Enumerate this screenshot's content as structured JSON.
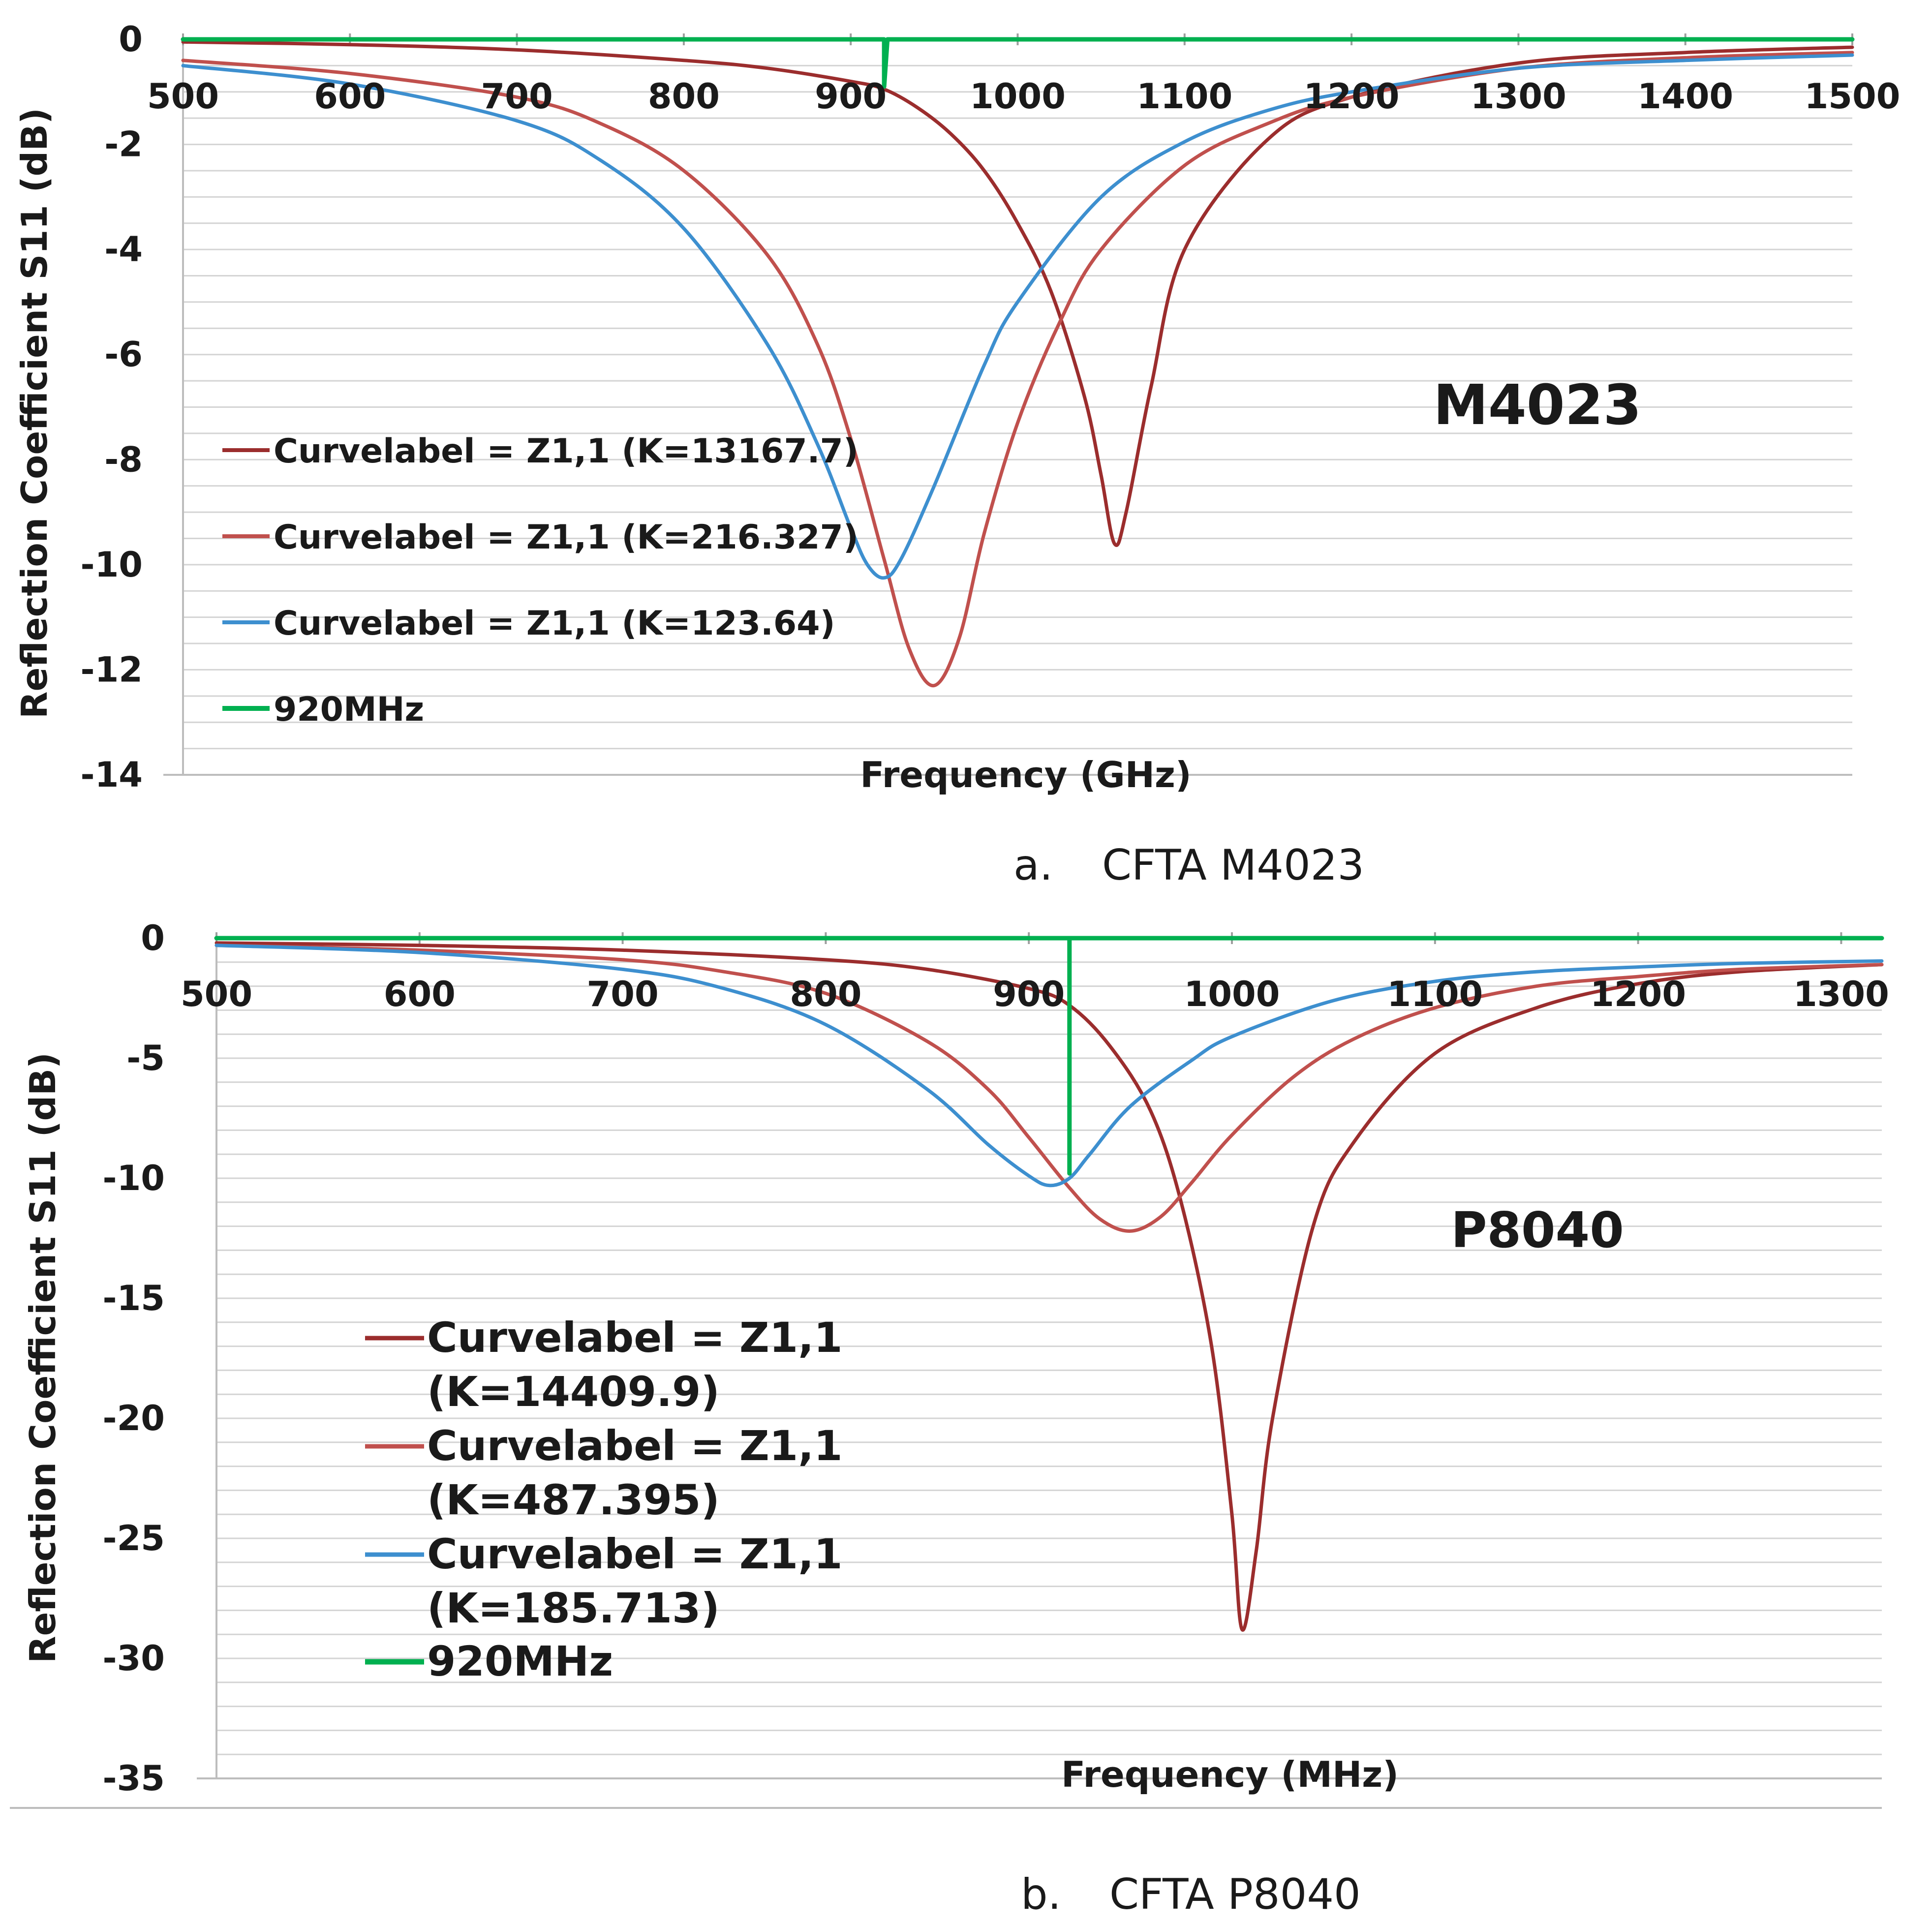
{
  "chart_data": [
    {
      "type": "line",
      "title": "M4023",
      "caption_label": "a.",
      "caption_text": "CFTA M4023",
      "xlabel": "Frequency (GHz)",
      "ylabel": "Reflection Coefficient S11 (dB)",
      "xlim": [
        500,
        1500
      ],
      "ylim": [
        -14,
        0
      ],
      "xticks": [
        "500",
        "600",
        "700",
        "800",
        "900",
        "1000",
        "1100",
        "1200",
        "1300",
        "1400",
        "1500"
      ],
      "yticks": [
        "0",
        "-2",
        "-4",
        "-6",
        "-8",
        "-10",
        "-12",
        "-14"
      ],
      "grid": true,
      "legend": "left-center",
      "series": [
        {
          "name": "Curvelabel = Z1,1 (K=13167.7)",
          "color": "#9b2d2d",
          "x": [
            500,
            600,
            700,
            800,
            850,
            900,
            920,
            940,
            960,
            980,
            1000,
            1020,
            1040,
            1050,
            1058,
            1065,
            1080,
            1100,
            1150,
            1200,
            1300,
            1400,
            1500
          ],
          "y": [
            -0.05,
            -0.1,
            -0.2,
            -0.4,
            -0.55,
            -0.8,
            -0.95,
            -1.3,
            -1.8,
            -2.5,
            -3.5,
            -4.8,
            -6.8,
            -8.3,
            -9.6,
            -9.0,
            -6.6,
            -4.0,
            -1.9,
            -1.1,
            -0.45,
            -0.25,
            -0.15
          ]
        },
        {
          "name": "Curvelabel = Z1,1 (K=216.327)",
          "color": "#c0504d",
          "x": [
            500,
            600,
            700,
            750,
            800,
            850,
            880,
            900,
            920,
            935,
            950,
            965,
            980,
            1000,
            1025,
            1050,
            1100,
            1150,
            1200,
            1300,
            1400,
            1500
          ],
          "y": [
            -0.4,
            -0.65,
            -1.1,
            -1.6,
            -2.5,
            -4.1,
            -5.8,
            -7.6,
            -9.9,
            -11.6,
            -12.3,
            -11.4,
            -9.4,
            -7.3,
            -5.4,
            -4.0,
            -2.4,
            -1.6,
            -1.1,
            -0.55,
            -0.35,
            -0.25
          ]
        },
        {
          "name": "Curvelabel = Z1,1 (K=123.64)",
          "color": "#3d8fcf",
          "x": [
            500,
            600,
            700,
            750,
            800,
            850,
            880,
            900,
            910,
            920,
            930,
            950,
            980,
            1000,
            1050,
            1100,
            1150,
            1200,
            1300,
            1400,
            1500
          ],
          "y": [
            -0.5,
            -0.85,
            -1.55,
            -2.3,
            -3.6,
            -5.8,
            -7.7,
            -9.3,
            -10.0,
            -10.25,
            -9.9,
            -8.5,
            -6.2,
            -5.0,
            -3.0,
            -1.95,
            -1.35,
            -1.0,
            -0.55,
            -0.4,
            -0.3
          ]
        },
        {
          "name": "920MHz",
          "color": "#00b050",
          "x": [
            500,
            918,
            920,
            920,
            922,
            1500
          ],
          "y": [
            0,
            0,
            0,
            -0.9,
            0,
            0
          ]
        }
      ]
    },
    {
      "type": "line",
      "title": "P8040",
      "caption_label": "b.",
      "caption_text": "CFTA P8040",
      "xlabel": "Frequency (MHz)",
      "ylabel": "Reflection Coefficient S11 (dB)",
      "xlim": [
        500,
        1320
      ],
      "ylim": [
        -35,
        0
      ],
      "xticks": [
        "500",
        "600",
        "700",
        "800",
        "900",
        "1000",
        "1100",
        "1200",
        "1300"
      ],
      "yticks": [
        "0",
        "-5",
        "-10",
        "-15",
        "-20",
        "-25",
        "-30",
        "-35"
      ],
      "grid": true,
      "legend": "left-center",
      "series": [
        {
          "name": "Curvelabel = Z1,1 (K=14409.9)",
          "legend_lines": [
            "Curvelabel = Z1,1",
            "(K=14409.9)"
          ],
          "color": "#9b2d2d",
          "x": [
            500,
            600,
            700,
            800,
            850,
            900,
            920,
            940,
            960,
            975,
            990,
            1000,
            1005,
            1012,
            1020,
            1040,
            1060,
            1100,
            1150,
            1200,
            1250,
            1320
          ],
          "y": [
            -0.2,
            -0.3,
            -0.5,
            -0.9,
            -1.3,
            -2.1,
            -2.8,
            -4.5,
            -7.2,
            -11.0,
            -17.0,
            -24.0,
            -28.8,
            -25.5,
            -20.0,
            -12.0,
            -8.5,
            -4.8,
            -2.9,
            -1.9,
            -1.4,
            -1.1
          ]
        },
        {
          "name": "Curvelabel = Z1,1 (K=487.395)",
          "legend_lines": [
            "Curvelabel = Z1,1",
            "(K=487.395)"
          ],
          "color": "#c0504d",
          "x": [
            500,
            600,
            700,
            750,
            800,
            850,
            880,
            900,
            920,
            935,
            950,
            965,
            980,
            1000,
            1030,
            1060,
            1100,
            1150,
            1200,
            1250,
            1320
          ],
          "y": [
            -0.3,
            -0.5,
            -0.9,
            -1.4,
            -2.3,
            -4.3,
            -6.3,
            -8.3,
            -10.4,
            -11.7,
            -12.2,
            -11.6,
            -10.2,
            -8.2,
            -5.8,
            -4.2,
            -2.9,
            -2.0,
            -1.6,
            -1.3,
            -1.1
          ]
        },
        {
          "name": "Curvelabel = Z1,1 (K=185.713)",
          "legend_lines": [
            "Curvelabel = Z1,1",
            "(K=185.713)"
          ],
          "color": "#3d8fcf",
          "x": [
            500,
            600,
            700,
            750,
            800,
            850,
            880,
            900,
            910,
            920,
            930,
            950,
            980,
            1000,
            1050,
            1100,
            1150,
            1200,
            1250,
            1320
          ],
          "y": [
            -0.3,
            -0.6,
            -1.3,
            -2.1,
            -3.6,
            -6.3,
            -8.6,
            -9.9,
            -10.3,
            -10.0,
            -9.0,
            -7.0,
            -5.1,
            -4.1,
            -2.6,
            -1.8,
            -1.4,
            -1.2,
            -1.05,
            -0.95
          ]
        },
        {
          "name": "920MHz",
          "legend_lines": [
            "920MHz"
          ],
          "color": "#00b050",
          "x": [
            500,
            920,
            920,
            920,
            1320
          ],
          "y": [
            0,
            0,
            -9.8,
            0,
            0
          ]
        }
      ]
    }
  ]
}
